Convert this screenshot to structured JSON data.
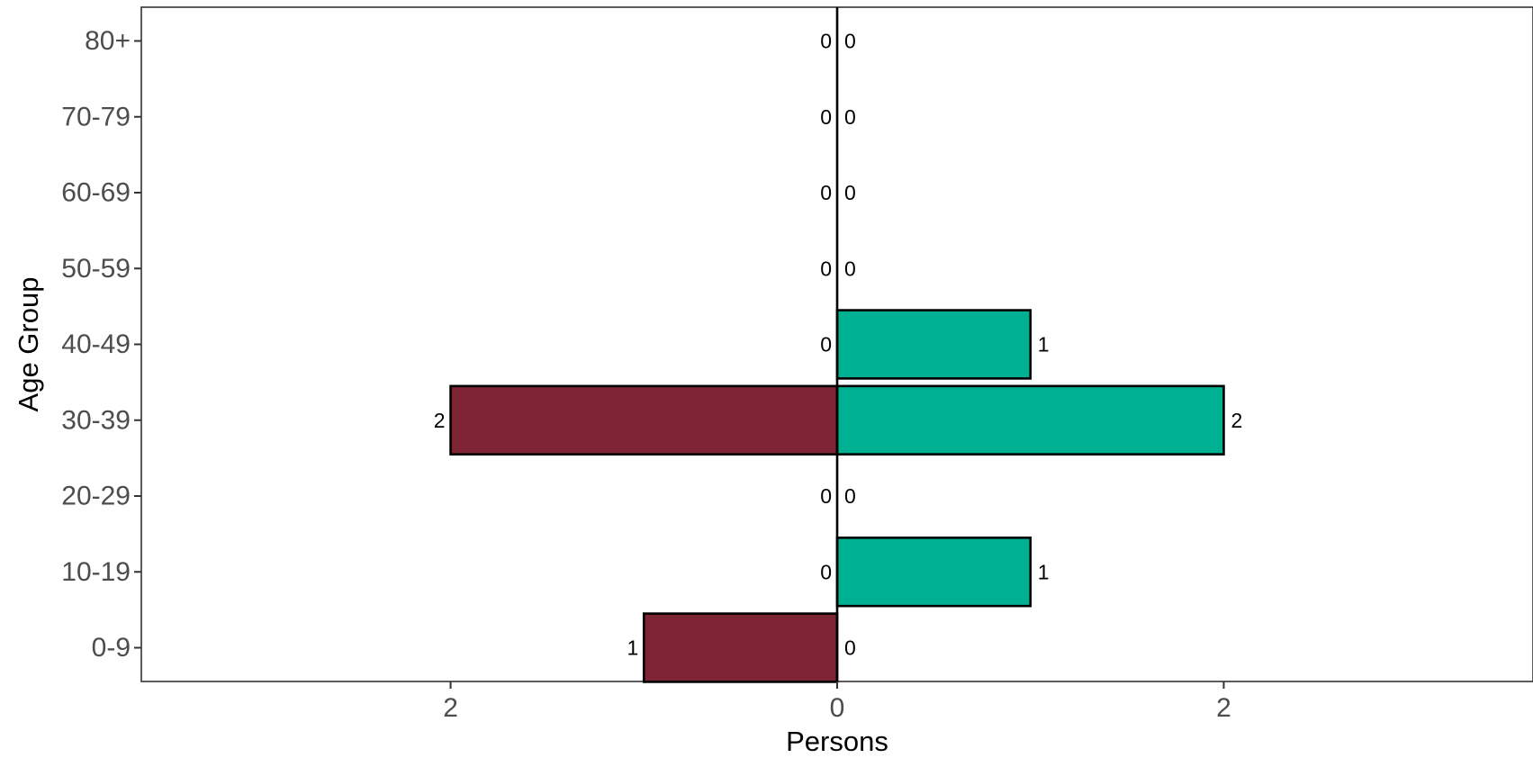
{
  "chart_data": {
    "type": "bar",
    "orientation": "horizontal",
    "layout": "population-pyramid",
    "title": "",
    "xlabel": "Persons",
    "ylabel": "Age Group",
    "categories": [
      "0-9",
      "10-19",
      "20-29",
      "30-39",
      "40-49",
      "50-59",
      "60-69",
      "70-79",
      "80+"
    ],
    "series": [
      {
        "side": "left",
        "color": "#7f2434",
        "values": [
          1,
          0,
          0,
          2,
          0,
          0,
          0,
          0,
          0
        ]
      },
      {
        "side": "right",
        "color": "#00b092",
        "values": [
          0,
          1,
          0,
          2,
          1,
          0,
          0,
          0,
          0
        ]
      }
    ],
    "xlim": [
      -3.6,
      3.6
    ],
    "xticks": [
      -2,
      0,
      2
    ],
    "xtick_labels": [
      "2",
      "0",
      "2"
    ],
    "grid": false,
    "legend": "none"
  }
}
